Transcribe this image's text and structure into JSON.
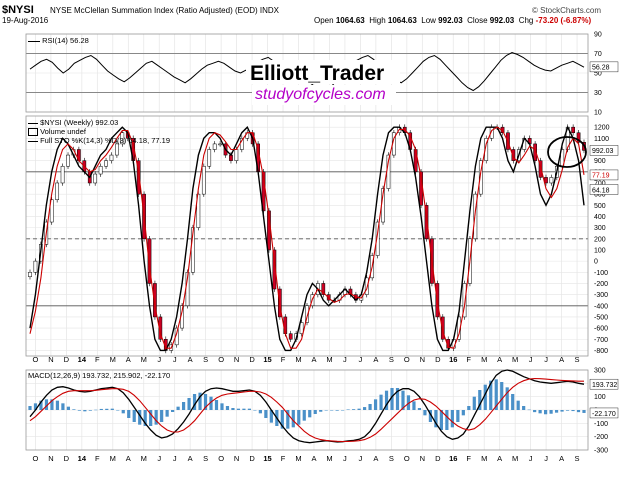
{
  "header": {
    "symbol": "$NYSI",
    "title": "NYSE McClellan Summation Index (Ratio Adjusted) (EOD)  INDX",
    "source": "© StockCharts.com",
    "date": "19-Aug-2016",
    "open_label": "Open",
    "open": "1064.63",
    "high_label": "High",
    "high": "1064.63",
    "low_label": "Low",
    "low": "992.03",
    "close_label": "Close",
    "close": "992.03",
    "chg_label": "Chg",
    "chg": "-73.20 (-6.87%)"
  },
  "watermark": {
    "line1": "Elliott_Trader",
    "line2": "studyofcycles.com"
  },
  "panels": {
    "rsi": {
      "legend": "RSI(14) 56.28",
      "value_tag": "56.28"
    },
    "price": {
      "legend1": "$NYSI (Weekly) 992.03",
      "legend2": "Volume undef",
      "legend3": "Full STO %K(14,3) %D(3) 64.18, 77.19",
      "close_tag": "992.03",
      "d_tag": "77.19",
      "k_tag": "64.18"
    },
    "macd": {
      "legend": "MACD(12,26,9) 193.732, 215.902, -22.170",
      "macd_tag": "193.732",
      "hist_tag": "-22.170"
    }
  },
  "colors": {
    "up_candle": "#ffffff",
    "down_candle": "#cc0022",
    "candle_outline": "#000000",
    "stoch_k": "#000000",
    "stoch_d": "#cc0000",
    "macd_line": "#000000",
    "signal_line": "#cc0000",
    "histogram": "#4a90c8",
    "rsi_line": "#000000",
    "grid": "#e5e5e5",
    "level": "#888888"
  },
  "chart_data": [
    {
      "type": "line",
      "name": "rsi",
      "ylim": [
        10,
        90
      ],
      "y_ticks": [
        10,
        30,
        50,
        70,
        90
      ],
      "levels": [
        30,
        70
      ],
      "x_tick_labels": [
        "O",
        "N",
        "D",
        "14",
        "F",
        "M",
        "A",
        "M",
        "J",
        "J",
        "A",
        "S",
        "O",
        "N",
        "D",
        "15",
        "F",
        "M",
        "A",
        "M",
        "J",
        "J",
        "A",
        "S",
        "O",
        "N",
        "D",
        "16",
        "F",
        "M",
        "A",
        "M",
        "J",
        "J",
        "A",
        "S"
      ],
      "values": [
        54,
        58,
        62,
        64,
        61,
        55,
        50,
        54,
        60,
        63,
        66,
        68,
        64,
        58,
        52,
        48,
        44,
        41,
        45,
        50,
        55,
        60,
        62,
        58,
        54,
        50,
        46,
        43,
        40,
        44,
        49,
        54,
        58,
        60,
        62,
        60,
        56,
        52,
        50,
        53,
        57,
        61,
        64,
        66,
        62,
        58,
        54,
        50,
        48,
        45,
        42,
        38,
        33,
        30,
        34,
        40,
        46,
        52,
        58,
        63,
        66,
        68,
        64,
        58,
        52,
        47,
        43,
        40,
        44,
        50,
        56,
        62,
        66,
        68,
        64,
        58,
        52,
        46,
        40,
        35,
        32,
        36,
        42,
        49,
        56,
        63,
        68,
        71,
        69,
        66,
        62,
        58,
        55,
        53,
        52,
        55,
        58,
        60,
        62,
        59,
        56
      ]
    },
    {
      "type": "candlestick",
      "name": "summation_index",
      "ylim": [
        -850,
        1300
      ],
      "y_ticks": [
        1200,
        1100,
        1000,
        900,
        800,
        700,
        600,
        500,
        400,
        300,
        200,
        100,
        0,
        -100,
        -200,
        -300,
        -400,
        -500,
        -600,
        -700,
        -800
      ],
      "levels": [
        800,
        200,
        -400
      ],
      "close": [
        -100,
        0,
        150,
        350,
        550,
        700,
        850,
        950,
        1000,
        900,
        800,
        700,
        780,
        850,
        900,
        950,
        1050,
        1150,
        1100,
        900,
        600,
        200,
        -200,
        -500,
        -700,
        -800,
        -750,
        -600,
        -400,
        -100,
        300,
        600,
        850,
        1000,
        1050,
        1050,
        950,
        900,
        1000,
        1100,
        1150,
        1050,
        800,
        450,
        100,
        -250,
        -500,
        -650,
        -700,
        -650,
        -550,
        -400,
        -300,
        -200,
        -300,
        -350,
        -350,
        -300,
        -250,
        -300,
        -350,
        -300,
        -150,
        50,
        350,
        650,
        950,
        1150,
        1200,
        1150,
        1000,
        800,
        500,
        200,
        -200,
        -500,
        -700,
        -780,
        -700,
        -500,
        -200,
        200,
        600,
        900,
        1100,
        1200,
        1200,
        1150,
        1000,
        900,
        1000,
        1100,
        1050,
        900,
        750,
        700,
        750,
        850,
        1000,
        1200,
        1150,
        1064.63,
        992.03
      ],
      "stoch_k": [
        -600,
        -300,
        100,
        500,
        800,
        1000,
        1100,
        1050,
        950,
        850,
        800,
        750,
        850,
        950,
        1000,
        1100,
        1150,
        1200,
        1150,
        900,
        500,
        0,
        -400,
        -700,
        -800,
        -800,
        -700,
        -500,
        -200,
        200,
        650,
        950,
        1100,
        1150,
        1150,
        1100,
        1000,
        950,
        1050,
        1150,
        1200,
        1100,
        800,
        400,
        0,
        -400,
        -700,
        -800,
        -800,
        -700,
        -500,
        -300,
        -200,
        -250,
        -350,
        -400,
        -350,
        -300,
        -250,
        -300,
        -350,
        -300,
        -100,
        200,
        600,
        950,
        1150,
        1200,
        1200,
        1150,
        1000,
        750,
        400,
        0,
        -400,
        -700,
        -800,
        -800,
        -700,
        -450,
        0,
        450,
        850,
        1100,
        1200,
        1200,
        1200,
        1100,
        900,
        800,
        950,
        1100,
        1050,
        850,
        600,
        500,
        600,
        800,
        1050,
        1200,
        1100,
        900,
        500
      ],
      "stoch_d": [
        -650,
        -450,
        -150,
        250,
        600,
        850,
        1000,
        1050,
        1000,
        900,
        850,
        800,
        820,
        900,
        950,
        1020,
        1100,
        1170,
        1170,
        1050,
        800,
        400,
        -50,
        -400,
        -650,
        -780,
        -780,
        -650,
        -450,
        -150,
        250,
        650,
        950,
        1100,
        1150,
        1130,
        1070,
        1000,
        1000,
        1080,
        1150,
        1150,
        1000,
        750,
        400,
        0,
        -400,
        -650,
        -780,
        -780,
        -700,
        -500,
        -340,
        -250,
        -280,
        -330,
        -370,
        -350,
        -300,
        -290,
        -320,
        -330,
        -250,
        -50,
        250,
        600,
        900,
        1100,
        1180,
        1180,
        1120,
        1000,
        750,
        400,
        0,
        -370,
        -630,
        -770,
        -780,
        -650,
        -400,
        0,
        450,
        800,
        1050,
        1170,
        1200,
        1170,
        1070,
        930,
        880,
        950,
        1030,
        1000,
        850,
        650,
        570,
        650,
        820,
        1020,
        1100,
        1050,
        772
      ]
    },
    {
      "type": "line",
      "name": "macd",
      "ylim": [
        -300,
        300
      ],
      "y_ticks": [
        300,
        200,
        100,
        0,
        -100,
        -200,
        -300
      ],
      "macd": [
        -50,
        0,
        60,
        110,
        150,
        170,
        175,
        165,
        150,
        140,
        135,
        140,
        150,
        160,
        165,
        170,
        160,
        130,
        80,
        20,
        -40,
        -100,
        -150,
        -190,
        -210,
        -200,
        -180,
        -140,
        -90,
        -30,
        40,
        100,
        140,
        160,
        165,
        160,
        150,
        140,
        140,
        145,
        150,
        140,
        110,
        60,
        0,
        -60,
        -120,
        -170,
        -210,
        -230,
        -240,
        -245,
        -240,
        -235,
        -230,
        -235,
        -240,
        -238,
        -232,
        -228,
        -220,
        -200,
        -160,
        -100,
        -30,
        40,
        100,
        140,
        160,
        160,
        140,
        100,
        40,
        -30,
        -100,
        -160,
        -200,
        -220,
        -210,
        -180,
        -120,
        -40,
        40,
        120,
        200,
        260,
        290,
        300,
        290,
        270,
        250,
        235,
        220,
        210,
        205,
        200,
        205,
        210,
        215,
        210,
        200,
        193.732
      ],
      "signal": [
        -80,
        -50,
        -10,
        30,
        70,
        100,
        125,
        140,
        145,
        145,
        145,
        145,
        148,
        152,
        156,
        160,
        160,
        155,
        140,
        110,
        70,
        20,
        -30,
        -80,
        -120,
        -150,
        -165,
        -165,
        -150,
        -120,
        -80,
        -30,
        20,
        60,
        90,
        110,
        120,
        125,
        130,
        135,
        140,
        140,
        135,
        120,
        95,
        60,
        20,
        -30,
        -80,
        -120,
        -160,
        -190,
        -210,
        -222,
        -228,
        -232,
        -235,
        -236,
        -236,
        -234,
        -230,
        -222,
        -205,
        -180,
        -145,
        -105,
        -65,
        -25,
        15,
        50,
        75,
        85,
        80,
        60,
        30,
        -10,
        -50,
        -90,
        -120,
        -140,
        -150,
        -140,
        -110,
        -70,
        -20,
        30,
        80,
        130,
        170,
        200,
        220,
        232,
        236,
        235,
        232,
        228,
        225,
        222,
        220,
        218,
        216,
        215.902
      ],
      "histogram": [
        30,
        50,
        70,
        80,
        80,
        70,
        50,
        25,
        5,
        -5,
        -10,
        -5,
        2,
        8,
        9,
        10,
        0,
        -25,
        -60,
        -90,
        -110,
        -120,
        -120,
        -110,
        -90,
        -50,
        -15,
        25,
        60,
        90,
        120,
        130,
        120,
        100,
        75,
        50,
        30,
        15,
        10,
        10,
        10,
        0,
        -25,
        -60,
        -95,
        -120,
        -140,
        -140,
        -130,
        -110,
        -80,
        -55,
        -30,
        -13,
        -2,
        -3,
        -5,
        -2,
        4,
        6,
        10,
        22,
        45,
        80,
        115,
        145,
        165,
        165,
        145,
        110,
        65,
        15,
        -40,
        -90,
        -130,
        -150,
        -150,
        -130,
        -90,
        -40,
        30,
        100,
        150,
        190,
        220,
        230,
        210,
        170,
        120,
        70,
        30,
        3,
        -16,
        -25,
        -32,
        -28,
        -20,
        -12,
        -5,
        -8,
        -16,
        -22.17
      ]
    }
  ]
}
